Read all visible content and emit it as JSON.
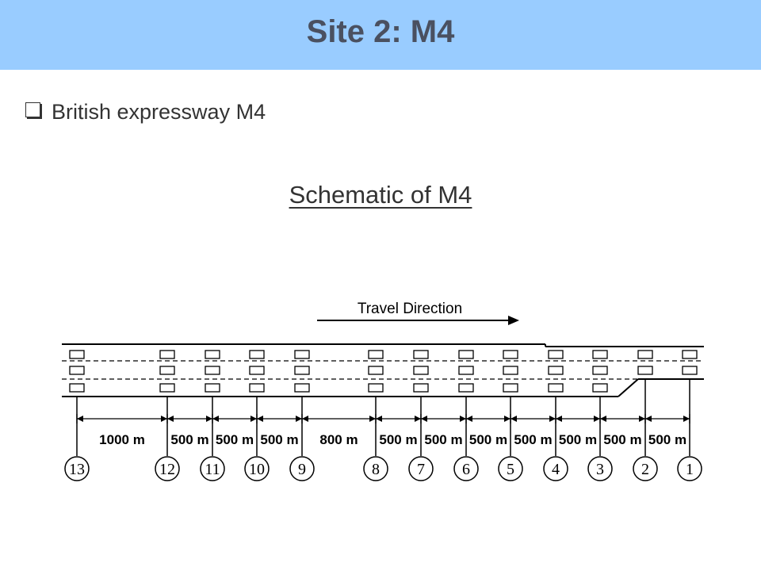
{
  "slide": {
    "title": "Site 2: M4",
    "bullet": "British expressway M4",
    "schematic_title": "Schematic of M4"
  },
  "diagram": {
    "travel_label": "Travel Direction",
    "detectors": [
      "13",
      "12",
      "11",
      "10",
      "9",
      "8",
      "7",
      "6",
      "5",
      "4",
      "3",
      "2",
      "1"
    ],
    "distances": [
      "1000 m",
      "500 m",
      "500 m",
      "500 m",
      "800 m",
      "500 m",
      "500 m",
      "500 m",
      "500 m",
      "500 m",
      "500 m",
      "500 m"
    ]
  }
}
